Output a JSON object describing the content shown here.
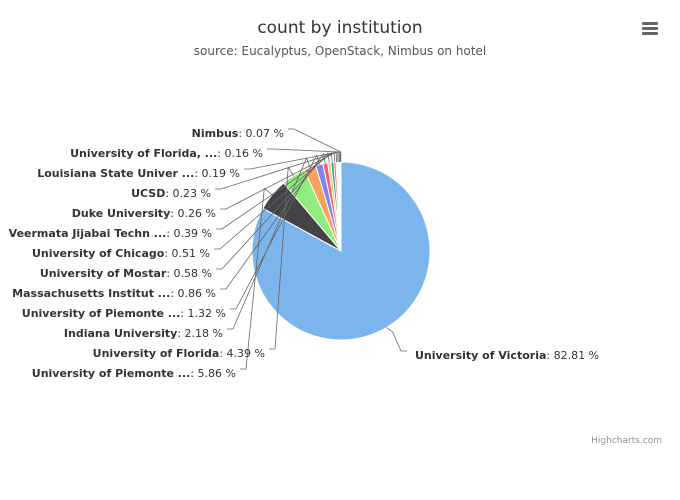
{
  "chart_data": {
    "type": "pie",
    "title": "count by institution",
    "subtitle": "source: Eucalyptus, OpenStack, Nimbus on hotel",
    "credits": "Highcharts.com",
    "menu_icon": "hamburger-menu-icon",
    "slices": [
      {
        "label": "University of Victoria",
        "value": 82.81,
        "color": "#7cb5ec"
      },
      {
        "label": "University of Piemonte ...",
        "value": 5.86,
        "color": "#434348"
      },
      {
        "label": "University of Florida",
        "value": 4.39,
        "color": "#90ed7d"
      },
      {
        "label": "Indiana University",
        "value": 2.18,
        "color": "#f7a35c"
      },
      {
        "label": "University of Piemonte ...",
        "value": 1.32,
        "color": "#8085e9"
      },
      {
        "label": "Massachusetts Institut ...",
        "value": 0.86,
        "color": "#f15c80"
      },
      {
        "label": "University of Mostar",
        "value": 0.58,
        "color": "#e4d354"
      },
      {
        "label": "University of Chicago",
        "value": 0.51,
        "color": "#2b908f"
      },
      {
        "label": "Veermata Jijabai Techn ...",
        "value": 0.39,
        "color": "#f45b5b"
      },
      {
        "label": "Duke University",
        "value": 0.26,
        "color": "#91e8e1"
      },
      {
        "label": "UCSD",
        "value": 0.23,
        "color": "#7cb5ec"
      },
      {
        "label": "Louisiana State Univer ...",
        "value": 0.19,
        "color": "#434348"
      },
      {
        "label": "University of Florida, ...",
        "value": 0.16,
        "color": "#90ed7d"
      },
      {
        "label": "Nimbus",
        "value": 0.07,
        "color": "#f7a35c"
      }
    ]
  }
}
